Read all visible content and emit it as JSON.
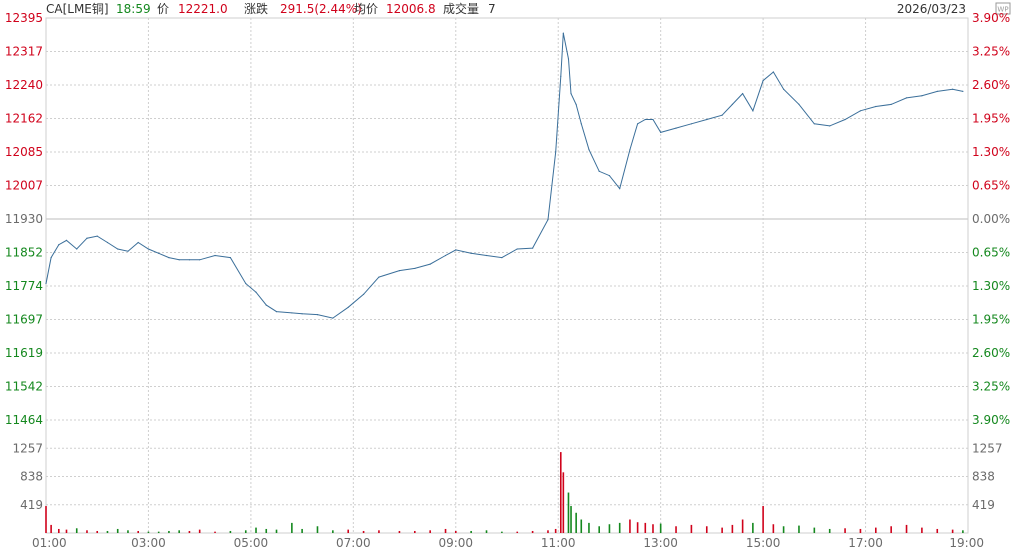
{
  "header": {
    "symbol": "CA[LME铜]",
    "time": "18:59",
    "price_label": "价",
    "price": "12221.0",
    "change_label": "涨跌",
    "change": "291.5(2.44%)",
    "avg_label": "均价",
    "avg": "12006.8",
    "volume_label": "成交量",
    "volume": "7",
    "date": "2026/03/23",
    "badge": "WP"
  },
  "colors": {
    "up": "#d0021b",
    "down": "#14881e",
    "neutral": "#6b6b6b",
    "line": "#3b6f9a",
    "grid": "#cfcfcf",
    "time_green": "#14881e"
  },
  "chart_data": {
    "type": "line",
    "title": "",
    "prev_close": 11930,
    "ylim": [
      11464,
      12395
    ],
    "price_ticks": [
      "12395",
      "12317",
      "12240",
      "12162",
      "12085",
      "12007",
      "11930",
      "11852",
      "11774",
      "11697",
      "11619",
      "11542",
      "11464"
    ],
    "pct_ticks": [
      "3.90%",
      "3.25%",
      "2.60%",
      "1.95%",
      "1.30%",
      "0.65%",
      "0.00%",
      "0.65%",
      "1.30%",
      "1.95%",
      "2.60%",
      "3.25%",
      "3.90%"
    ],
    "volume_ticks": [
      "1257",
      "838",
      "419"
    ],
    "volume_ylim": [
      0,
      1676
    ],
    "x_ticks": [
      "01:00",
      "03:00",
      "05:00",
      "07:00",
      "09:00",
      "11:00",
      "13:00",
      "15:00",
      "17:00",
      "19:00"
    ],
    "xlim_hours": [
      1,
      19
    ],
    "series": [
      {
        "x": [
          1.0,
          1.1,
          1.25,
          1.4,
          1.6,
          1.8,
          2.0,
          2.2,
          2.4,
          2.6,
          2.8,
          3.0,
          3.2,
          3.4,
          3.6,
          3.8,
          4.0,
          4.3,
          4.6,
          4.9,
          5.1,
          5.3,
          5.5,
          5.8,
          6.0,
          6.3,
          6.6,
          6.9,
          7.2,
          7.5,
          7.9,
          8.2,
          8.5,
          8.8,
          9.0,
          9.3,
          9.6,
          9.9,
          10.2,
          10.5,
          10.8,
          10.95,
          11.05,
          11.1,
          11.2,
          11.25,
          11.35,
          11.45,
          11.6,
          11.8,
          12.0,
          12.2,
          12.4,
          12.55,
          12.7,
          12.85,
          13.0,
          13.3,
          13.6,
          13.9,
          14.2,
          14.4,
          14.6,
          14.8,
          15.0,
          15.2,
          15.4,
          15.7,
          16.0,
          16.3,
          16.6,
          16.9,
          17.2,
          17.5,
          17.8,
          18.1,
          18.4,
          18.7,
          18.9
        ],
        "y": [
          11780,
          11840,
          11870,
          11880,
          11860,
          11885,
          11890,
          11875,
          11860,
          11855,
          11875,
          11860,
          11850,
          11840,
          11835,
          11835,
          11835,
          11845,
          11840,
          11780,
          11760,
          11730,
          11715,
          11712,
          11710,
          11708,
          11700,
          11725,
          11755,
          11795,
          11810,
          11815,
          11825,
          11845,
          11858,
          11850,
          11845,
          11840,
          11860,
          11862,
          11928,
          12085,
          12260,
          12360,
          12300,
          12220,
          12195,
          12150,
          12090,
          12040,
          12030,
          12000,
          12090,
          12150,
          12160,
          12160,
          12130,
          12140,
          12150,
          12160,
          12170,
          12195,
          12220,
          12180,
          12250,
          12270,
          12230,
          12195,
          12150,
          12145,
          12160,
          12180,
          12190,
          12195,
          12210,
          12215,
          12225,
          12230,
          12225
        ],
        "vol": [
          400,
          120,
          60,
          50,
          70,
          40,
          30,
          30,
          60,
          40,
          30,
          20,
          20,
          30,
          40,
          30,
          50,
          20,
          30,
          40,
          80,
          60,
          50,
          150,
          60,
          100,
          40,
          50,
          30,
          40,
          30,
          30,
          40,
          60,
          30,
          30,
          40,
          20,
          20,
          30,
          40,
          60,
          1200,
          900,
          600,
          400,
          300,
          200,
          150,
          100,
          130,
          150,
          200,
          160,
          150,
          130,
          140,
          100,
          120,
          100,
          80,
          120,
          200,
          150,
          400,
          130,
          100,
          110,
          80,
          60,
          70,
          60,
          80,
          100,
          120,
          80,
          60,
          50,
          40
        ]
      }
    ]
  }
}
